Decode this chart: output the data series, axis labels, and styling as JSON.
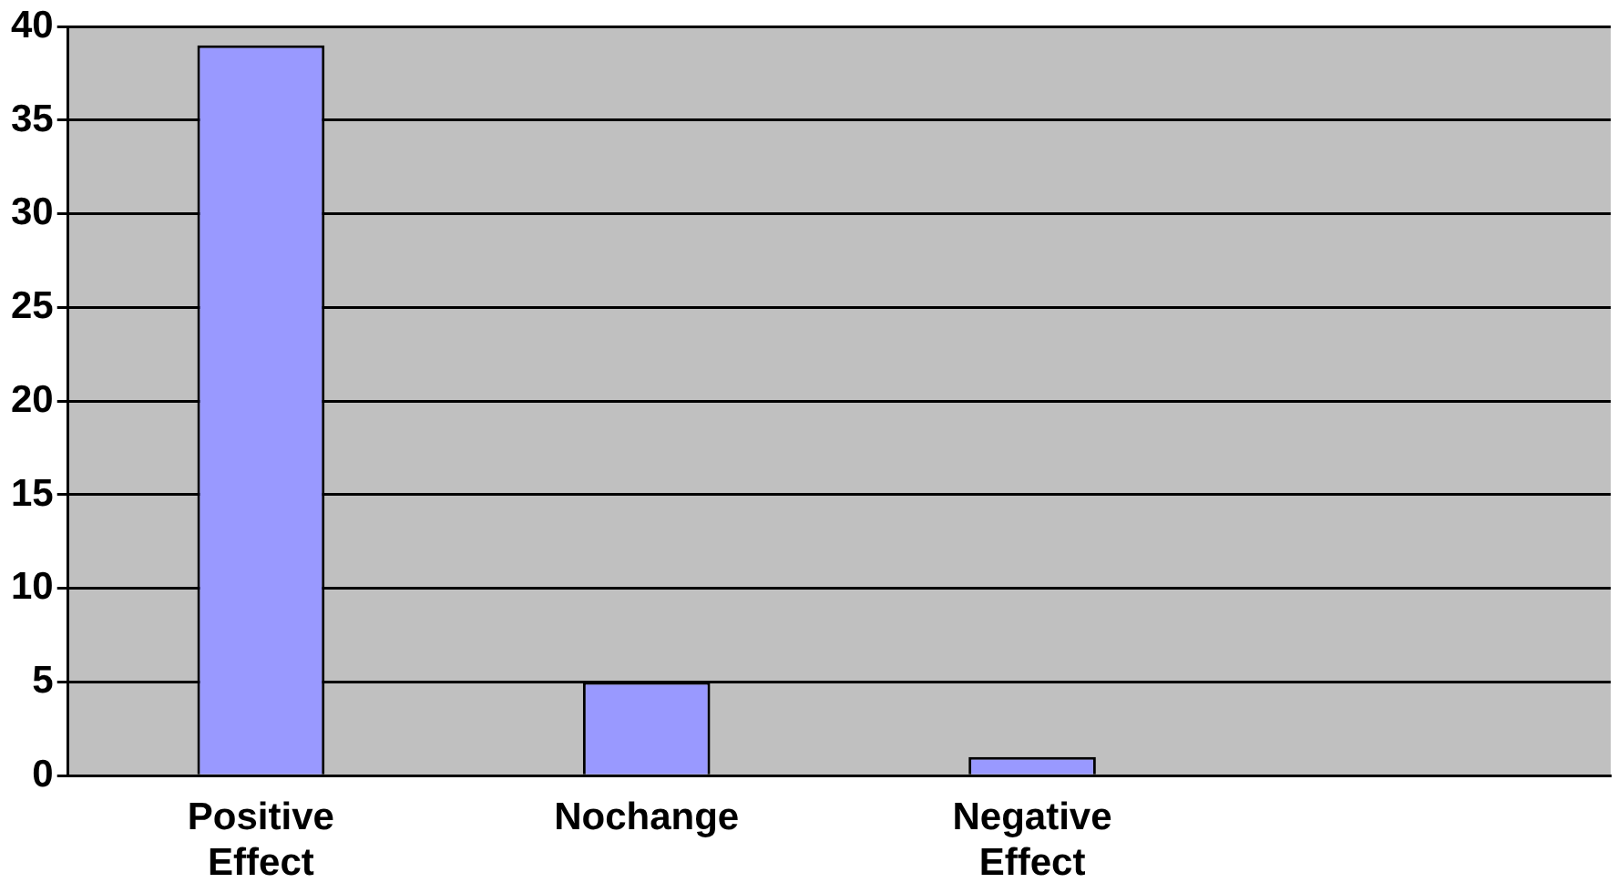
{
  "chart_data": {
    "type": "bar",
    "categories": [
      "Positive Effect",
      "Nochange",
      "Negative Effect",
      null
    ],
    "values": [
      39,
      5,
      1,
      null
    ],
    "color": "#9999ff",
    "ylim": [
      0,
      40
    ],
    "yticks": [
      0,
      5,
      10,
      15,
      20,
      25,
      30,
      35,
      40
    ],
    "grid": "y",
    "legend": false
  }
}
